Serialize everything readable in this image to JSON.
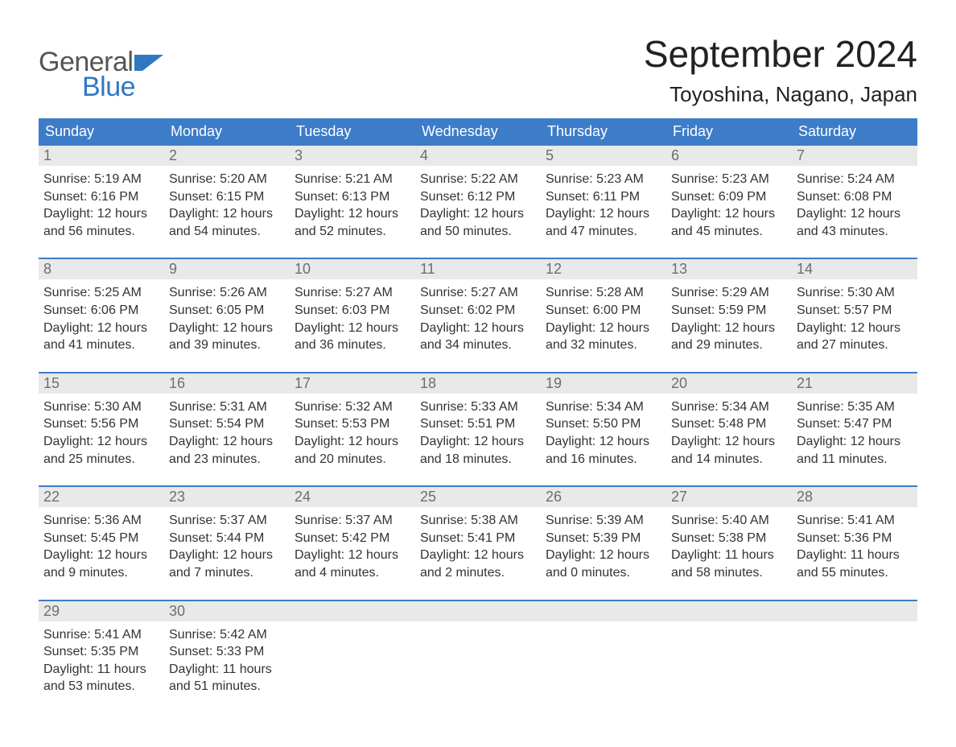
{
  "logo": {
    "text_general": "General",
    "text_blue": "Blue",
    "flag_color": "#2f78c4",
    "general_color": "#555555",
    "blue_color": "#2f78c4"
  },
  "title": "September 2024",
  "location": "Toyoshina, Nagano, Japan",
  "colors": {
    "header_bg": "#3d7cc9",
    "header_text": "#ffffff",
    "week_border": "#3d7cc9",
    "daynum_bg": "#e9e9e9",
    "daynum_text": "#6e6e6e",
    "body_text": "#333333",
    "page_bg": "#ffffff"
  },
  "typography": {
    "title_fontsize": 46,
    "location_fontsize": 26,
    "header_fontsize": 18,
    "daynum_fontsize": 18,
    "body_fontsize": 16
  },
  "layout": {
    "columns": 7,
    "type": "calendar-table"
  },
  "day_headers": [
    "Sunday",
    "Monday",
    "Tuesday",
    "Wednesday",
    "Thursday",
    "Friday",
    "Saturday"
  ],
  "weeks": [
    [
      {
        "num": "1",
        "sunrise": "Sunrise: 5:19 AM",
        "sunset": "Sunset: 6:16 PM",
        "day1": "Daylight: 12 hours",
        "day2": "and 56 minutes."
      },
      {
        "num": "2",
        "sunrise": "Sunrise: 5:20 AM",
        "sunset": "Sunset: 6:15 PM",
        "day1": "Daylight: 12 hours",
        "day2": "and 54 minutes."
      },
      {
        "num": "3",
        "sunrise": "Sunrise: 5:21 AM",
        "sunset": "Sunset: 6:13 PM",
        "day1": "Daylight: 12 hours",
        "day2": "and 52 minutes."
      },
      {
        "num": "4",
        "sunrise": "Sunrise: 5:22 AM",
        "sunset": "Sunset: 6:12 PM",
        "day1": "Daylight: 12 hours",
        "day2": "and 50 minutes."
      },
      {
        "num": "5",
        "sunrise": "Sunrise: 5:23 AM",
        "sunset": "Sunset: 6:11 PM",
        "day1": "Daylight: 12 hours",
        "day2": "and 47 minutes."
      },
      {
        "num": "6",
        "sunrise": "Sunrise: 5:23 AM",
        "sunset": "Sunset: 6:09 PM",
        "day1": "Daylight: 12 hours",
        "day2": "and 45 minutes."
      },
      {
        "num": "7",
        "sunrise": "Sunrise: 5:24 AM",
        "sunset": "Sunset: 6:08 PM",
        "day1": "Daylight: 12 hours",
        "day2": "and 43 minutes."
      }
    ],
    [
      {
        "num": "8",
        "sunrise": "Sunrise: 5:25 AM",
        "sunset": "Sunset: 6:06 PM",
        "day1": "Daylight: 12 hours",
        "day2": "and 41 minutes."
      },
      {
        "num": "9",
        "sunrise": "Sunrise: 5:26 AM",
        "sunset": "Sunset: 6:05 PM",
        "day1": "Daylight: 12 hours",
        "day2": "and 39 minutes."
      },
      {
        "num": "10",
        "sunrise": "Sunrise: 5:27 AM",
        "sunset": "Sunset: 6:03 PM",
        "day1": "Daylight: 12 hours",
        "day2": "and 36 minutes."
      },
      {
        "num": "11",
        "sunrise": "Sunrise: 5:27 AM",
        "sunset": "Sunset: 6:02 PM",
        "day1": "Daylight: 12 hours",
        "day2": "and 34 minutes."
      },
      {
        "num": "12",
        "sunrise": "Sunrise: 5:28 AM",
        "sunset": "Sunset: 6:00 PM",
        "day1": "Daylight: 12 hours",
        "day2": "and 32 minutes."
      },
      {
        "num": "13",
        "sunrise": "Sunrise: 5:29 AM",
        "sunset": "Sunset: 5:59 PM",
        "day1": "Daylight: 12 hours",
        "day2": "and 29 minutes."
      },
      {
        "num": "14",
        "sunrise": "Sunrise: 5:30 AM",
        "sunset": "Sunset: 5:57 PM",
        "day1": "Daylight: 12 hours",
        "day2": "and 27 minutes."
      }
    ],
    [
      {
        "num": "15",
        "sunrise": "Sunrise: 5:30 AM",
        "sunset": "Sunset: 5:56 PM",
        "day1": "Daylight: 12 hours",
        "day2": "and 25 minutes."
      },
      {
        "num": "16",
        "sunrise": "Sunrise: 5:31 AM",
        "sunset": "Sunset: 5:54 PM",
        "day1": "Daylight: 12 hours",
        "day2": "and 23 minutes."
      },
      {
        "num": "17",
        "sunrise": "Sunrise: 5:32 AM",
        "sunset": "Sunset: 5:53 PM",
        "day1": "Daylight: 12 hours",
        "day2": "and 20 minutes."
      },
      {
        "num": "18",
        "sunrise": "Sunrise: 5:33 AM",
        "sunset": "Sunset: 5:51 PM",
        "day1": "Daylight: 12 hours",
        "day2": "and 18 minutes."
      },
      {
        "num": "19",
        "sunrise": "Sunrise: 5:34 AM",
        "sunset": "Sunset: 5:50 PM",
        "day1": "Daylight: 12 hours",
        "day2": "and 16 minutes."
      },
      {
        "num": "20",
        "sunrise": "Sunrise: 5:34 AM",
        "sunset": "Sunset: 5:48 PM",
        "day1": "Daylight: 12 hours",
        "day2": "and 14 minutes."
      },
      {
        "num": "21",
        "sunrise": "Sunrise: 5:35 AM",
        "sunset": "Sunset: 5:47 PM",
        "day1": "Daylight: 12 hours",
        "day2": "and 11 minutes."
      }
    ],
    [
      {
        "num": "22",
        "sunrise": "Sunrise: 5:36 AM",
        "sunset": "Sunset: 5:45 PM",
        "day1": "Daylight: 12 hours",
        "day2": "and 9 minutes."
      },
      {
        "num": "23",
        "sunrise": "Sunrise: 5:37 AM",
        "sunset": "Sunset: 5:44 PM",
        "day1": "Daylight: 12 hours",
        "day2": "and 7 minutes."
      },
      {
        "num": "24",
        "sunrise": "Sunrise: 5:37 AM",
        "sunset": "Sunset: 5:42 PM",
        "day1": "Daylight: 12 hours",
        "day2": "and 4 minutes."
      },
      {
        "num": "25",
        "sunrise": "Sunrise: 5:38 AM",
        "sunset": "Sunset: 5:41 PM",
        "day1": "Daylight: 12 hours",
        "day2": "and 2 minutes."
      },
      {
        "num": "26",
        "sunrise": "Sunrise: 5:39 AM",
        "sunset": "Sunset: 5:39 PM",
        "day1": "Daylight: 12 hours",
        "day2": "and 0 minutes."
      },
      {
        "num": "27",
        "sunrise": "Sunrise: 5:40 AM",
        "sunset": "Sunset: 5:38 PM",
        "day1": "Daylight: 11 hours",
        "day2": "and 58 minutes."
      },
      {
        "num": "28",
        "sunrise": "Sunrise: 5:41 AM",
        "sunset": "Sunset: 5:36 PM",
        "day1": "Daylight: 11 hours",
        "day2": "and 55 minutes."
      }
    ],
    [
      {
        "num": "29",
        "sunrise": "Sunrise: 5:41 AM",
        "sunset": "Sunset: 5:35 PM",
        "day1": "Daylight: 11 hours",
        "day2": "and 53 minutes."
      },
      {
        "num": "30",
        "sunrise": "Sunrise: 5:42 AM",
        "sunset": "Sunset: 5:33 PM",
        "day1": "Daylight: 11 hours",
        "day2": "and 51 minutes."
      },
      {
        "empty": true
      },
      {
        "empty": true
      },
      {
        "empty": true
      },
      {
        "empty": true
      },
      {
        "empty": true
      }
    ]
  ]
}
